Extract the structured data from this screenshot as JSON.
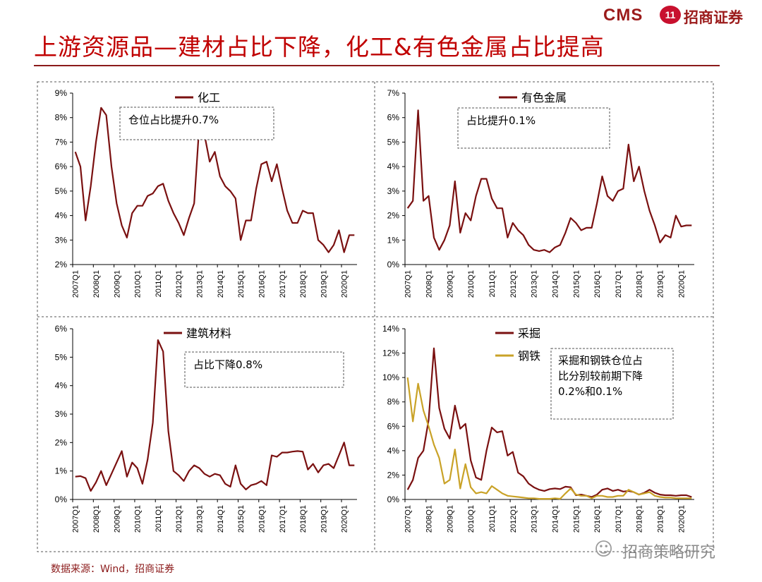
{
  "header": {
    "title": "上游资源品—建材占比下降，化工&有色金属占比提高",
    "logo_cms": "CMS",
    "logo_badge": "11",
    "logo_cn": "招商证券"
  },
  "source": "数据来源：Wind，招商证券",
  "watermark": {
    "icon": "☺",
    "text": "招商策略研究"
  },
  "colors": {
    "title": "#c00000",
    "dark_red": "#7a1010",
    "gold": "#c9a227",
    "rule": "#8b1a1a"
  },
  "chart_data": [
    {
      "type": "line",
      "title": "",
      "ylim": [
        2,
        9
      ],
      "ytick_step": 1,
      "ytick_decimals": 0,
      "yticks_labels": [
        "2%",
        "3%",
        "4%",
        "5%",
        "6%",
        "7%",
        "8%",
        "9%"
      ],
      "x_tick_labels": [
        "2007Q1",
        "2008Q1",
        "2009Q1",
        "2010Q1",
        "2011Q1",
        "2012Q1",
        "2013Q1",
        "2014Q1",
        "2015Q1",
        "2016Q1",
        "2017Q1",
        "2018Q1",
        "2019Q1",
        "2020Q1"
      ],
      "n_points": 55,
      "legend": "top-center",
      "annotation": "仓位占比提升0.7%",
      "series": [
        {
          "name": "化工",
          "color": "#7a1010",
          "values": [
            6.6,
            6.0,
            3.8,
            5.2,
            7.0,
            8.4,
            8.1,
            6.0,
            4.5,
            3.6,
            3.1,
            4.1,
            4.4,
            4.4,
            4.8,
            4.9,
            5.2,
            5.3,
            4.6,
            4.1,
            3.7,
            3.2,
            3.9,
            4.5,
            7.7,
            7.3,
            6.2,
            6.6,
            5.6,
            5.2,
            5.0,
            4.7,
            3.0,
            3.8,
            3.8,
            5.1,
            6.1,
            6.2,
            5.4,
            6.1,
            5.1,
            4.2,
            3.7,
            3.7,
            4.2,
            4.1,
            4.1,
            3.0,
            2.8,
            2.5,
            2.8,
            3.4,
            2.5,
            3.2,
            3.2
          ]
        }
      ]
    },
    {
      "type": "line",
      "title": "",
      "ylim": [
        0,
        7
      ],
      "ytick_step": 1,
      "ytick_decimals": 0,
      "yticks_labels": [
        "0%",
        "1%",
        "2%",
        "3%",
        "4%",
        "5%",
        "6%",
        "7%"
      ],
      "x_tick_labels": [
        "2007Q1",
        "2008Q1",
        "2009Q1",
        "2010Q1",
        "2011Q1",
        "2012Q1",
        "2013Q1",
        "2014Q1",
        "2015Q1",
        "2016Q1",
        "2017Q1",
        "2018Q1",
        "2019Q1",
        "2020Q1"
      ],
      "n_points": 55,
      "legend": "top-center",
      "annotation": "占比提升0.1%",
      "series": [
        {
          "name": "有色金属",
          "color": "#7a1010",
          "values": [
            2.3,
            2.6,
            6.3,
            2.6,
            2.8,
            1.1,
            0.6,
            1.0,
            1.6,
            3.4,
            1.3,
            2.1,
            1.8,
            2.8,
            3.5,
            3.5,
            2.7,
            2.3,
            2.3,
            1.1,
            1.7,
            1.4,
            1.2,
            0.8,
            0.6,
            0.55,
            0.6,
            0.5,
            0.7,
            0.8,
            1.3,
            1.9,
            1.7,
            1.4,
            1.5,
            1.5,
            2.5,
            3.6,
            2.8,
            2.6,
            3.0,
            3.1,
            4.9,
            3.4,
            4.0,
            3.0,
            2.2,
            1.6,
            0.9,
            1.2,
            1.1,
            2.0,
            1.55,
            1.6,
            1.6
          ]
        }
      ]
    },
    {
      "type": "line",
      "title": "",
      "ylim": [
        0,
        6
      ],
      "ytick_step": 1,
      "ytick_decimals": 0,
      "yticks_labels": [
        "0%",
        "1%",
        "2%",
        "3%",
        "4%",
        "5%",
        "6%"
      ],
      "x_tick_labels": [
        "2007Q1",
        "2008Q1",
        "2009Q1",
        "2010Q1",
        "2011Q1",
        "2012Q1",
        "2013Q1",
        "2014Q1",
        "2015Q1",
        "2016Q1",
        "2017Q1",
        "2018Q1",
        "2019Q1",
        "2020Q1"
      ],
      "n_points": 55,
      "legend": "top-center",
      "annotation": "占比下降0.8%",
      "series": [
        {
          "name": "建筑材料",
          "color": "#7a1010",
          "values": [
            0.8,
            0.82,
            0.75,
            0.3,
            0.6,
            1.0,
            0.5,
            0.9,
            1.3,
            1.7,
            0.8,
            1.3,
            1.1,
            0.55,
            1.4,
            2.7,
            5.6,
            5.2,
            2.4,
            1.0,
            0.85,
            0.65,
            1.0,
            1.2,
            1.1,
            0.9,
            0.8,
            0.9,
            0.85,
            0.55,
            0.45,
            1.2,
            0.55,
            0.35,
            0.5,
            0.55,
            0.65,
            0.5,
            1.55,
            1.5,
            1.65,
            1.65,
            1.68,
            1.7,
            1.68,
            1.05,
            1.25,
            0.95,
            1.2,
            1.25,
            1.1,
            1.55,
            2.0,
            1.2,
            1.2
          ]
        }
      ]
    },
    {
      "type": "line",
      "title": "",
      "ylim": [
        0,
        14
      ],
      "ytick_step": 2,
      "ytick_decimals": 0,
      "yticks_labels": [
        "0%",
        "2%",
        "4%",
        "6%",
        "8%",
        "10%",
        "12%",
        "14%"
      ],
      "x_tick_labels": [
        "2007Q1",
        "2008Q1",
        "2009Q1",
        "2010Q1",
        "2011Q1",
        "2012Q1",
        "2013Q1",
        "2014Q1",
        "2015Q1",
        "2016Q1",
        "2017Q1",
        "2018Q1",
        "2019Q1",
        "2020Q1"
      ],
      "n_points": 55,
      "legend": "top-center",
      "annotation": "采掘和钢铁仓位占比分别较前期下降0.2%和0.1%",
      "annotation_lines": [
        "采掘和钢铁仓位占",
        "比分别较前期下降",
        "0.2%和0.1%"
      ],
      "series": [
        {
          "name": "采掘",
          "color": "#7a1010",
          "values": [
            0.8,
            1.6,
            3.4,
            4.0,
            6.5,
            12.4,
            7.5,
            5.8,
            5.0,
            7.7,
            5.8,
            6.2,
            3.2,
            1.8,
            1.6,
            4.0,
            5.9,
            5.5,
            5.6,
            3.6,
            3.9,
            2.2,
            1.9,
            1.3,
            1.0,
            0.8,
            0.7,
            0.85,
            0.9,
            0.85,
            1.05,
            1.0,
            0.35,
            0.4,
            0.3,
            0.2,
            0.4,
            0.8,
            0.9,
            0.7,
            0.8,
            0.65,
            0.7,
            0.6,
            0.4,
            0.55,
            0.8,
            0.55,
            0.4,
            0.35,
            0.35,
            0.3,
            0.35,
            0.35,
            0.2
          ]
        },
        {
          "name": "钢铁",
          "color": "#c9a227",
          "values": [
            10.0,
            6.4,
            9.5,
            7.3,
            6.0,
            4.5,
            3.4,
            1.3,
            1.6,
            4.1,
            0.9,
            2.9,
            1.0,
            0.5,
            0.6,
            0.5,
            1.1,
            0.8,
            0.5,
            0.3,
            0.25,
            0.2,
            0.15,
            0.1,
            0.1,
            0.05,
            0.05,
            0.05,
            0.1,
            0.05,
            0.5,
            0.9,
            0.4,
            0.3,
            0.3,
            0.1,
            0.3,
            0.3,
            0.2,
            0.2,
            0.3,
            0.3,
            0.8,
            0.6,
            0.4,
            0.5,
            0.6,
            0.3,
            0.2,
            0.15,
            0.15,
            0.1,
            0.1,
            0.1,
            0.1
          ]
        }
      ]
    }
  ]
}
